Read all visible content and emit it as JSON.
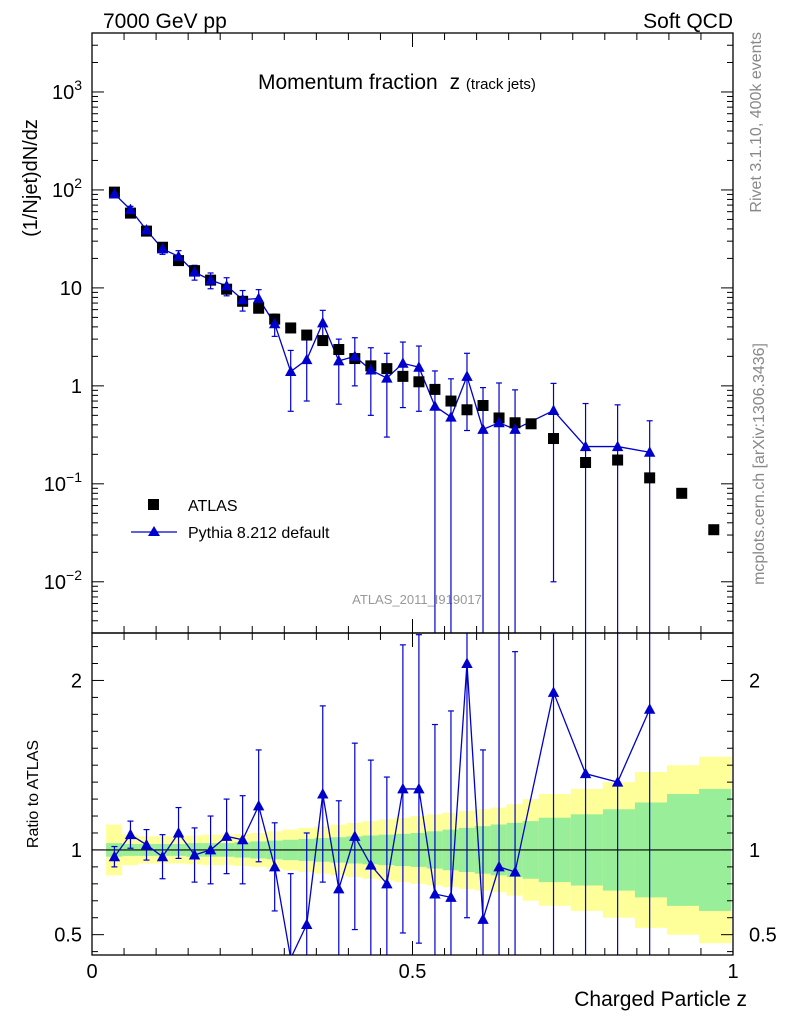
{
  "header": {
    "energy_label": "7000 GeV pp",
    "process_label": "Soft QCD"
  },
  "side": {
    "rivet_label": "Rivet 3.1.10,  400k events",
    "source_label": "mcplots.cern.ch [arXiv:1306.3436]"
  },
  "colors": {
    "data": "#000000",
    "mc": "#0000cc",
    "band_inner": "#99ee99",
    "band_outer": "#ffff99"
  },
  "chart_data": {
    "type": "scatter",
    "title": "Momentum fraction",
    "title_variable": "z",
    "title_subscript": "(track jets)",
    "analysis_label": "ATLAS_2011_I919017",
    "xlabel": "Charged Particle z",
    "ylabel": "(1/Njet)dN/dz",
    "ratio_ylabel": "Ratio to ATLAS",
    "xlim": [
      0,
      1
    ],
    "ylim": [
      0.003,
      4000
    ],
    "yscale": "log",
    "ratio_ylim": [
      0.38,
      2.28
    ],
    "x_ticks": [
      "0",
      "0.5",
      "1"
    ],
    "ratio_ticks": [
      "0.5",
      "1",
      "2"
    ],
    "legend": {
      "position": "bottom-left",
      "entries": [
        "ATLAS",
        "Pythia 8.212 default"
      ]
    },
    "series": [
      {
        "name": "ATLAS",
        "marker": "square",
        "x": [
          0.035,
          0.06,
          0.085,
          0.11,
          0.135,
          0.16,
          0.185,
          0.21,
          0.235,
          0.26,
          0.285,
          0.31,
          0.335,
          0.36,
          0.385,
          0.41,
          0.435,
          0.46,
          0.485,
          0.51,
          0.535,
          0.56,
          0.585,
          0.61,
          0.635,
          0.66,
          0.685,
          0.72,
          0.77,
          0.82,
          0.87,
          0.92,
          0.97
        ],
        "values": [
          95,
          58,
          38,
          26,
          19,
          15,
          12,
          9.7,
          7.3,
          6.2,
          4.8,
          3.9,
          3.3,
          2.9,
          2.35,
          1.9,
          1.6,
          1.5,
          1.25,
          1.1,
          0.92,
          0.7,
          0.57,
          0.63,
          0.47,
          0.42,
          0.41,
          0.29,
          0.165,
          0.175,
          0.115,
          0.08,
          0.034
        ]
      },
      {
        "name": "Pythia 8.212 default",
        "marker": "triangle",
        "x": [
          0.035,
          0.06,
          0.085,
          0.11,
          0.135,
          0.16,
          0.185,
          0.21,
          0.235,
          0.26,
          0.285,
          0.31,
          0.335,
          0.36,
          0.385,
          0.41,
          0.435,
          0.46,
          0.485,
          0.51,
          0.535,
          0.56,
          0.585,
          0.61,
          0.635,
          0.66,
          0.72,
          0.77,
          0.82,
          0.87
        ],
        "values": [
          91,
          63,
          39,
          25,
          21,
          14.5,
          12,
          10.5,
          7.6,
          7.8,
          4.3,
          1.4,
          1.85,
          4.4,
          1.8,
          2.0,
          1.45,
          1.2,
          1.7,
          1.55,
          0.62,
          0.48,
          1.25,
          0.36,
          0.42,
          0.36,
          0.56,
          0.24,
          0.24,
          0.21
        ],
        "err_up": [
          5,
          5,
          3.5,
          3,
          3,
          2.5,
          2.2,
          2.2,
          1.8,
          1.8,
          1.1,
          0.9,
          1.2,
          1.5,
          1.2,
          1.1,
          1.0,
          0.95,
          1.1,
          1.0,
          0.8,
          0.7,
          0.9,
          0.6,
          0.65,
          0.55,
          0.5,
          0.42,
          0.4,
          0.23
        ],
        "err_down": [
          5,
          5,
          3.5,
          3,
          3,
          2.5,
          2.2,
          2.2,
          1.8,
          1.8,
          1.1,
          0.85,
          1.15,
          1.5,
          1.15,
          1.0,
          0.95,
          0.9,
          1.1,
          1.0,
          0.62,
          0.48,
          0.9,
          0.36,
          0.42,
          0.36,
          0.55,
          0.24,
          0.24,
          0.21
        ]
      }
    ],
    "ratio": {
      "x": [
        0.035,
        0.06,
        0.085,
        0.11,
        0.135,
        0.16,
        0.185,
        0.21,
        0.235,
        0.26,
        0.285,
        0.31,
        0.335,
        0.36,
        0.385,
        0.41,
        0.435,
        0.46,
        0.485,
        0.51,
        0.535,
        0.56,
        0.585,
        0.61,
        0.635,
        0.66,
        0.72,
        0.77,
        0.82,
        0.87
      ],
      "values": [
        0.96,
        1.09,
        1.03,
        0.96,
        1.1,
        0.97,
        1.0,
        1.08,
        1.06,
        1.26,
        0.9,
        0.36,
        0.56,
        1.33,
        0.77,
        1.08,
        0.91,
        0.8,
        1.36,
        1.36,
        0.74,
        0.72,
        2.1,
        0.59,
        0.9,
        0.87,
        1.93,
        1.45,
        1.4,
        1.83
      ],
      "err_up": [
        0.06,
        0.08,
        0.09,
        0.13,
        0.15,
        0.16,
        0.2,
        0.22,
        0.26,
        0.33,
        0.26,
        0.5,
        0.54,
        0.52,
        0.52,
        0.55,
        0.62,
        0.63,
        0.85,
        0.91,
        1.0,
        1.1,
        1.5,
        1.0,
        1.4,
        1.3,
        1.6,
        2.5,
        2.4,
        2.0
      ],
      "err_down": [
        0.06,
        0.08,
        0.09,
        0.13,
        0.15,
        0.16,
        0.2,
        0.22,
        0.26,
        0.33,
        0.26,
        0.5,
        0.54,
        0.52,
        0.52,
        0.55,
        0.62,
        0.63,
        0.85,
        0.91,
        1.0,
        1.1,
        1.5,
        1.0,
        1.4,
        1.3,
        1.6,
        2.5,
        2.4,
        2.0
      ],
      "band_edges": [
        0.022,
        0.047,
        0.072,
        0.097,
        0.122,
        0.147,
        0.172,
        0.197,
        0.222,
        0.247,
        0.272,
        0.297,
        0.322,
        0.347,
        0.372,
        0.397,
        0.422,
        0.447,
        0.472,
        0.497,
        0.522,
        0.547,
        0.572,
        0.597,
        0.622,
        0.647,
        0.672,
        0.697,
        0.747,
        0.797,
        0.847,
        0.897,
        0.947,
        0.997
      ],
      "band_inner": [
        0.04,
        0.035,
        0.035,
        0.035,
        0.035,
        0.04,
        0.04,
        0.04,
        0.045,
        0.05,
        0.055,
        0.06,
        0.065,
        0.07,
        0.075,
        0.08,
        0.085,
        0.09,
        0.095,
        0.1,
        0.11,
        0.12,
        0.13,
        0.14,
        0.15,
        0.16,
        0.17,
        0.19,
        0.21,
        0.24,
        0.28,
        0.33,
        0.36
      ],
      "band_outer": [
        0.15,
        0.09,
        0.08,
        0.08,
        0.08,
        0.085,
        0.09,
        0.09,
        0.095,
        0.1,
        0.11,
        0.12,
        0.13,
        0.14,
        0.15,
        0.16,
        0.17,
        0.18,
        0.19,
        0.2,
        0.21,
        0.22,
        0.23,
        0.24,
        0.25,
        0.27,
        0.3,
        0.33,
        0.36,
        0.4,
        0.46,
        0.5,
        0.55
      ]
    }
  }
}
